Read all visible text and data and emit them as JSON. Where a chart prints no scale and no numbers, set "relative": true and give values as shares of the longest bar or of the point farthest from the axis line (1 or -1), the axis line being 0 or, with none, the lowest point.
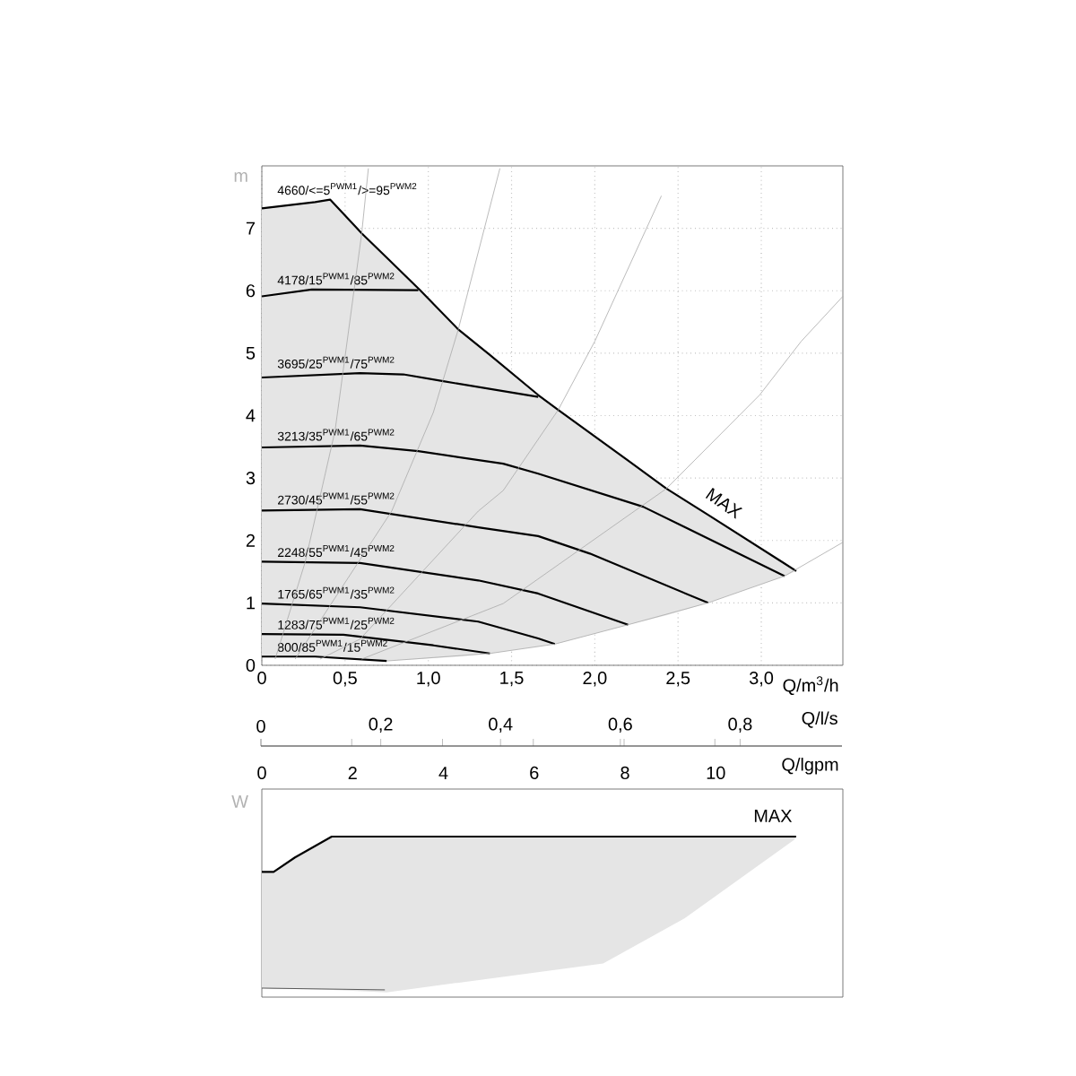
{
  "chart_data": [
    {
      "type": "line",
      "xlabel": "Q/m$^{3}$/h",
      "ylabel": "m",
      "x2label": "Q/l/s",
      "xlim": [
        0,
        3.49
      ],
      "ylim": [
        0,
        8
      ],
      "xticks": [
        0,
        {
          "value": 0.5,
          "label": "0,5"
        },
        {
          "value": 1.0,
          "label": "1,0"
        },
        {
          "value": 1.5,
          "label": "1,5"
        },
        {
          "value": 2.0,
          "label": "2,0"
        },
        {
          "value": 2.5,
          "label": "2,5"
        },
        {
          "value": 3.0,
          "label": "3,0"
        }
      ],
      "yticks": [
        0,
        1,
        2,
        3,
        4,
        5,
        6,
        7
      ],
      "x2lim": [
        0,
        0.97
      ],
      "x2ticks": [
        0,
        {
          "value": 0.2,
          "label": "0,2"
        },
        {
          "value": 0.4,
          "label": "0,4"
        },
        {
          "value": 0.6,
          "label": "0,6"
        },
        {
          "value": 0.8,
          "label": "0,8"
        }
      ],
      "grid": true,
      "annotations": [
        "MAX"
      ],
      "series": [
        {
          "name": "4660/<=5$^{PWM1}$/>=95$^{PWM2}$",
          "color": "#000000",
          "x": [
            0,
            0.32,
            0.41,
            0.6,
            0.75,
            0.95,
            1.18,
            1.37,
            1.66,
            1.76,
            1.78,
            2.2,
            2.43,
            2.68,
            3.14,
            3.21
          ],
          "values": [
            7.32,
            7.42,
            7.46,
            6.92,
            6.53,
            6.01,
            5.38,
            4.97,
            4.33,
            4.13,
            4.09,
            3.28,
            2.83,
            2.41,
            1.63,
            1.51
          ],
          "lower": [
            0.14,
            0.14,
            0.13,
            0.1,
            0.07,
            0.1,
            0.14,
            0.19,
            0.3,
            0.34,
            0.35,
            0.65,
            0.8,
            1.0,
            1.43,
            1.51
          ],
          "upper": [
            7.32,
            7.42,
            7.46,
            6.92,
            6.53,
            6.01,
            5.38,
            4.97,
            4.33,
            4.13,
            4.09,
            3.28,
            2.83,
            2.41,
            1.63,
            1.51
          ]
        },
        {
          "name": "4178/15$^{PWM1}$/85$^{PWM2}$",
          "color": "#000000",
          "x": [
            0,
            0.3,
            0.94
          ],
          "values": [
            5.91,
            6.02,
            6.01
          ]
        },
        {
          "name": "3695/25$^{PWM1}$/75$^{PWM2}$",
          "color": "#000000",
          "x": [
            0,
            0.59,
            0.85,
            1.09,
            1.66
          ],
          "values": [
            4.61,
            4.68,
            4.66,
            4.55,
            4.3
          ]
        },
        {
          "name": "3213/35$^{PWM1}$/65$^{PWM2}$",
          "color": "#000000",
          "x": [
            0,
            0.59,
            0.94,
            1.45,
            1.66,
            2.29,
            3.14
          ],
          "values": [
            3.49,
            3.52,
            3.43,
            3.23,
            3.07,
            2.54,
            1.43
          ]
        },
        {
          "name": "2730/45$^{PWM1}$/55$^{PWM2}$",
          "color": "#000000",
          "x": [
            0,
            0.59,
            1.3,
            1.66,
            1.97,
            2.68
          ],
          "values": [
            2.48,
            2.5,
            2.21,
            2.07,
            1.79,
            1.0
          ]
        },
        {
          "name": "2248/55$^{PWM1}$/45$^{PWM2}$",
          "color": "#000000",
          "x": [
            0,
            0.59,
            1.3,
            1.66,
            2.2
          ],
          "values": [
            1.66,
            1.64,
            1.36,
            1.15,
            0.65
          ]
        },
        {
          "name": "1765/65$^{PWM1}$/35$^{PWM2}$",
          "color": "#000000",
          "x": [
            0,
            0.59,
            1.3,
            1.66,
            1.76
          ],
          "values": [
            0.99,
            0.93,
            0.7,
            0.43,
            0.34
          ]
        },
        {
          "name": "1283/75$^{PWM1}$/25$^{PWM2}$",
          "color": "#000000",
          "x": [
            0,
            0.49,
            1.03,
            1.37
          ],
          "values": [
            0.5,
            0.49,
            0.32,
            0.19
          ]
        },
        {
          "name": "800/85$^{PWM1}$/15$^{PWM2}$",
          "color": "#000000",
          "x": [
            0,
            0.32,
            0.75
          ],
          "values": [
            0.14,
            0.14,
            0.07
          ]
        },
        {
          "color": "#aaaaaa",
          "x": [
            0.08,
            0.26,
            0.44,
            0.6,
            0.64
          ],
          "values": [
            0.1,
            1.65,
            3.76,
            6.92,
            7.96
          ]
        },
        {
          "color": "#aaaaaa",
          "x": [
            0.2,
            0.78,
            1.03,
            1.18,
            1.43
          ],
          "values": [
            0.1,
            2.47,
            4.05,
            5.38,
            7.96
          ]
        },
        {
          "color": "#aaaaaa",
          "x": [
            0.35,
            0.59,
            1.3,
            1.45,
            1.78,
            2.0,
            2.4
          ],
          "values": [
            0.1,
            0.42,
            2.47,
            2.8,
            4.09,
            5.19,
            7.52
          ]
        },
        {
          "color": "#aaaaaa",
          "x": [
            0.6,
            1.45,
            2.43,
            2.99,
            3.24,
            3.49
          ],
          "values": [
            0.1,
            0.99,
            2.83,
            4.33,
            5.19,
            5.91
          ]
        },
        {
          "color": "#aaaaaa",
          "x": [
            0.75,
            1.37,
            1.76,
            2.2,
            2.68,
            3.14,
            3.49
          ],
          "values": [
            0.07,
            0.19,
            0.34,
            0.65,
            1.0,
            1.43,
            1.97
          ]
        }
      ]
    },
    {
      "type": "line",
      "relative": true,
      "ylabel": "W",
      "xlabel": "Q/lgpm",
      "xlim": [
        0,
        12.8
      ],
      "xticks": [
        0,
        2,
        4,
        6,
        8,
        10
      ],
      "tick_labels": "x",
      "series": [
        {
          "name": "MAX",
          "color": "#000000",
          "x": [
            0,
            0.26,
            0.73,
            1.54,
            2.75,
            7.52,
            9.31,
            11.73,
            11.77
          ],
          "values": [
            0.78,
            0.78,
            0.87,
            1.0,
            1.0,
            1.0,
            1.0,
            1.0,
            1.0
          ],
          "lower": [
            0.056,
            0.05,
            0.05,
            0.045,
            0.03,
            0.21,
            0.49,
            0.98,
            1.0
          ],
          "upper": [
            0.78,
            0.78,
            0.87,
            1.0,
            1.0,
            1.0,
            1.0,
            1.0,
            1.0
          ]
        },
        {
          "color": "#333333",
          "x": [
            0,
            2.71
          ],
          "values": [
            0.056,
            0.045
          ]
        }
      ]
    }
  ]
}
